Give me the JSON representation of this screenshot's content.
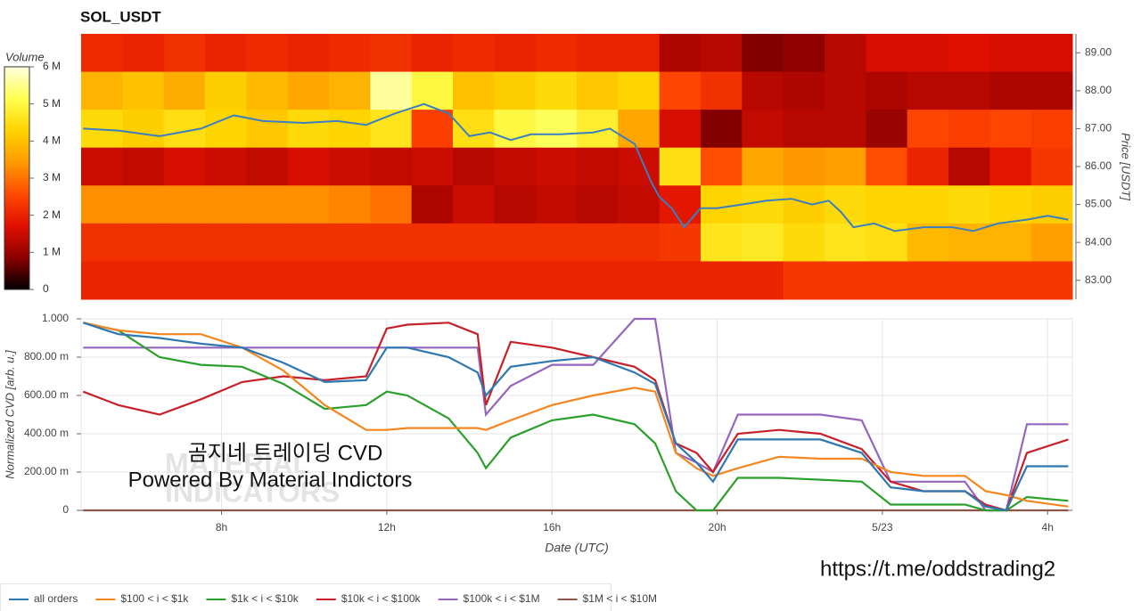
{
  "chart_data": [
    {
      "type": "heatmap",
      "title": "SOL_USDT",
      "bins": [
        4.6,
        5.6,
        6.6,
        7.6,
        8.6,
        9.6,
        10.6,
        11.6,
        12.6,
        13.6,
        14.6,
        15.6,
        16.6,
        17.6,
        18.6,
        19.6,
        20.6,
        21.6,
        22.6,
        23.6,
        24.6,
        25.6,
        26.6,
        27.6,
        28.6
      ],
      "xlim": [
        4.6,
        28.6
      ],
      "price_levels": [
        89,
        88,
        87,
        86,
        85,
        84,
        83
      ],
      "z": [
        [
          2100000,
          2000000,
          2200000,
          2000000,
          2100000,
          2000000,
          2100000,
          2200000,
          2000000,
          2100000,
          2000000,
          2100000,
          2000000,
          2000000,
          1200000,
          1300000,
          800000,
          900000,
          1300000,
          1600000,
          1600000,
          1700000,
          1600000,
          1600000
        ],
        [
          3800000,
          4000000,
          3700000,
          4200000,
          3900000,
          3600000,
          3800000,
          5600000,
          5000000,
          4000000,
          4200000,
          4400000,
          4100000,
          4300000,
          2500000,
          2200000,
          1300000,
          1200000,
          1300000,
          1200000,
          1300000,
          1300000,
          1200000,
          1200000
        ],
        [
          4400000,
          4200000,
          4500000,
          4300000,
          4100000,
          4400000,
          4300000,
          4600000,
          2400000,
          4500000,
          5000000,
          5200000,
          4800000,
          3600000,
          1600000,
          800000,
          1400000,
          1300000,
          1300000,
          1000000,
          2500000,
          2400000,
          2500000,
          2400000
        ],
        [
          1500000,
          1400000,
          1600000,
          1500000,
          1400000,
          1600000,
          1500000,
          1400000,
          1500000,
          1300000,
          1400000,
          1500000,
          1400000,
          1500000,
          4500000,
          2600000,
          3600000,
          3400000,
          3500000,
          2600000,
          2000000,
          1300000,
          1800000,
          2300000
        ],
        [
          3300000,
          3300000,
          3300000,
          3300000,
          3300000,
          3300000,
          3200000,
          3000000,
          1200000,
          1500000,
          1300000,
          1400000,
          1300000,
          1400000,
          1800000,
          4300000,
          4400000,
          4200000,
          4400000,
          4300000,
          4300000,
          4400000,
          4300000,
          4200000
        ],
        [
          2200000,
          2200000,
          2200000,
          2200000,
          2200000,
          2200000,
          2200000,
          2200000,
          2200000,
          2200000,
          2200000,
          2200000,
          2200000,
          2200000,
          2300000,
          4600000,
          4700000,
          4400000,
          4600000,
          4500000,
          3900000,
          3800000,
          3800000,
          3500000
        ],
        [
          2000000,
          2000000,
          2000000,
          2000000,
          2000000,
          2000000,
          2000000,
          2000000,
          2000000,
          2000000,
          2000000,
          2000000,
          2000000,
          2000000,
          2000000,
          2000000,
          2000000,
          2300000,
          2300000,
          2300000,
          2300000,
          2300000,
          2300000,
          2300000
        ]
      ],
      "colorscale": [
        "#000000",
        "#8b0000",
        "#e01000",
        "#ff4a00",
        "#ff9a00",
        "#ffd400",
        "#ffff50",
        "#ffffe0"
      ],
      "colorbar": {
        "label": "Volume",
        "lim": [
          0,
          6000000
        ],
        "ticks": [
          0,
          {
            "value": 1000000,
            "label": "1 M"
          },
          {
            "value": 2000000,
            "label": "2 M"
          },
          {
            "value": 3000000,
            "label": "3 M"
          },
          {
            "value": 4000000,
            "label": "4 M"
          },
          {
            "value": 5000000,
            "label": "5 M"
          },
          {
            "value": 6000000,
            "label": "6 M"
          }
        ]
      },
      "y2_label": "Price [USDT]",
      "y2lim": [
        82.5,
        89.5
      ],
      "y2ticks": [
        {
          "value": 83,
          "label": "83.00"
        },
        {
          "value": 84,
          "label": "84.00"
        },
        {
          "value": 85,
          "label": "85.00"
        },
        {
          "value": 86,
          "label": "86.00"
        },
        {
          "value": 87,
          "label": "87.00"
        },
        {
          "value": 88,
          "label": "88.00"
        },
        {
          "value": 89,
          "label": "89.00"
        }
      ],
      "price": {
        "color": "#3a7fc0",
        "x": [
          4.65,
          5.5,
          6.5,
          7.5,
          8.3,
          9.0,
          10.0,
          10.8,
          11.5,
          12.2,
          12.9,
          13.5,
          14.0,
          14.5,
          15.0,
          15.5,
          16.2,
          17.0,
          17.4,
          18.0,
          18.4,
          18.6,
          18.9,
          19.2,
          19.6,
          20.0,
          20.6,
          21.2,
          21.8,
          22.3,
          22.7,
          23.0,
          23.3,
          23.8,
          24.3,
          25.0,
          25.7,
          26.2,
          26.8,
          27.5,
          28.0,
          28.5
        ],
        "values": [
          87.0,
          86.95,
          86.8,
          87.0,
          87.35,
          87.2,
          87.15,
          87.2,
          87.1,
          87.4,
          87.65,
          87.4,
          86.8,
          86.9,
          86.7,
          86.85,
          86.85,
          86.9,
          87.0,
          86.6,
          85.6,
          85.2,
          84.9,
          84.4,
          84.9,
          84.9,
          85.0,
          85.1,
          85.15,
          85.0,
          85.1,
          84.8,
          84.4,
          84.5,
          84.3,
          84.4,
          84.4,
          84.3,
          84.5,
          84.6,
          84.7,
          84.6
        ]
      }
    },
    {
      "type": "line",
      "x_label": "Date (UTC)",
      "y_label": "Normalized CVD [arb. u.]",
      "x": [
        4.65,
        5.5,
        6.5,
        7.5,
        8.5,
        9.5,
        10.5,
        11.5,
        12.0,
        12.5,
        13.5,
        14.2,
        14.4,
        15.0,
        16.0,
        17.0,
        18.0,
        18.5,
        19.0,
        19.5,
        19.9,
        20.5,
        21.5,
        22.5,
        23.5,
        24.2,
        25.0,
        26.0,
        26.5,
        27.0,
        27.5,
        28.5
      ],
      "xlim": [
        4.6,
        28.6
      ],
      "xticks": [
        {
          "value": 8,
          "label": "8h"
        },
        {
          "value": 12,
          "label": "12h"
        },
        {
          "value": 16,
          "label": "16h"
        },
        {
          "value": 20,
          "label": "20h"
        },
        {
          "value": 24,
          "label": "5/23"
        },
        {
          "value": 28,
          "label": "4h"
        }
      ],
      "ylim": [
        0,
        1
      ],
      "yticks": [
        0,
        {
          "value": 0.2,
          "label": "200.00 m"
        },
        {
          "value": 0.4,
          "label": "400.00 m"
        },
        {
          "value": 0.6,
          "label": "600.00 m"
        },
        {
          "value": 0.8,
          "label": "800.00 m"
        },
        {
          "value": 1,
          "label": "1.000"
        }
      ],
      "grid": true,
      "legend": "bottom-left",
      "series": [
        {
          "name": "all orders",
          "color": "#2e77b0",
          "values": [
            0.98,
            0.92,
            0.9,
            0.87,
            0.85,
            0.77,
            0.67,
            0.68,
            0.85,
            0.85,
            0.8,
            0.72,
            0.6,
            0.75,
            0.78,
            0.8,
            0.72,
            0.66,
            0.35,
            0.25,
            0.15,
            0.37,
            0.37,
            0.37,
            0.3,
            0.12,
            0.1,
            0.1,
            0.02,
            0.0,
            0.23,
            0.23
          ]
        },
        {
          "name": "$100 < i < $1k",
          "color": "#f5861f",
          "values": [
            0.98,
            0.94,
            0.92,
            0.92,
            0.85,
            0.73,
            0.55,
            0.42,
            0.42,
            0.43,
            0.43,
            0.43,
            0.42,
            0.47,
            0.55,
            0.6,
            0.64,
            0.62,
            0.3,
            0.22,
            0.18,
            0.22,
            0.28,
            0.27,
            0.27,
            0.2,
            0.18,
            0.18,
            0.1,
            0.08,
            0.05,
            0.02
          ]
        },
        {
          "name": "$1k < i < $10k",
          "color": "#2ca02c",
          "values": [
            0.98,
            0.94,
            0.8,
            0.76,
            0.75,
            0.66,
            0.53,
            0.55,
            0.62,
            0.6,
            0.48,
            0.3,
            0.22,
            0.38,
            0.47,
            0.5,
            0.45,
            0.35,
            0.1,
            0.0,
            0.0,
            0.17,
            0.17,
            0.16,
            0.15,
            0.03,
            0.03,
            0.03,
            0.0,
            0.0,
            0.07,
            0.05
          ]
        },
        {
          "name": "$10k < i < $100k",
          "color": "#c8202a",
          "values": [
            0.62,
            0.55,
            0.5,
            0.58,
            0.67,
            0.7,
            0.68,
            0.7,
            0.95,
            0.97,
            0.98,
            0.92,
            0.55,
            0.88,
            0.85,
            0.8,
            0.75,
            0.68,
            0.35,
            0.3,
            0.2,
            0.4,
            0.42,
            0.4,
            0.32,
            0.15,
            0.1,
            0.1,
            0.03,
            0.0,
            0.3,
            0.37
          ]
        },
        {
          "name": "$100k < i < $1M",
          "color": "#9467bd",
          "values": [
            0.85,
            0.85,
            0.85,
            0.85,
            0.85,
            0.85,
            0.85,
            0.85,
            0.85,
            0.85,
            0.85,
            0.85,
            0.5,
            0.65,
            0.76,
            0.76,
            1.0,
            1.0,
            0.3,
            0.25,
            0.2,
            0.5,
            0.5,
            0.5,
            0.47,
            0.15,
            0.15,
            0.15,
            0.0,
            0.0,
            0.45,
            0.45
          ]
        },
        {
          "name": "$1M < i < $10M",
          "color": "#8c564b",
          "values": [
            0,
            0,
            0,
            0,
            0,
            0,
            0,
            0,
            0,
            0,
            0,
            0,
            0,
            0,
            0,
            0,
            0,
            0,
            0,
            0,
            0,
            0,
            0,
            0,
            0,
            0,
            0,
            0,
            0,
            0,
            0,
            0
          ]
        }
      ],
      "annotations": [
        "곰지네 트레이딩 CVD",
        "Powered By Material Indictors"
      ],
      "watermark": [
        "MATERIAL",
        "INDICATORS"
      ],
      "footer_link": "https://t.me/oddstrading2"
    }
  ]
}
